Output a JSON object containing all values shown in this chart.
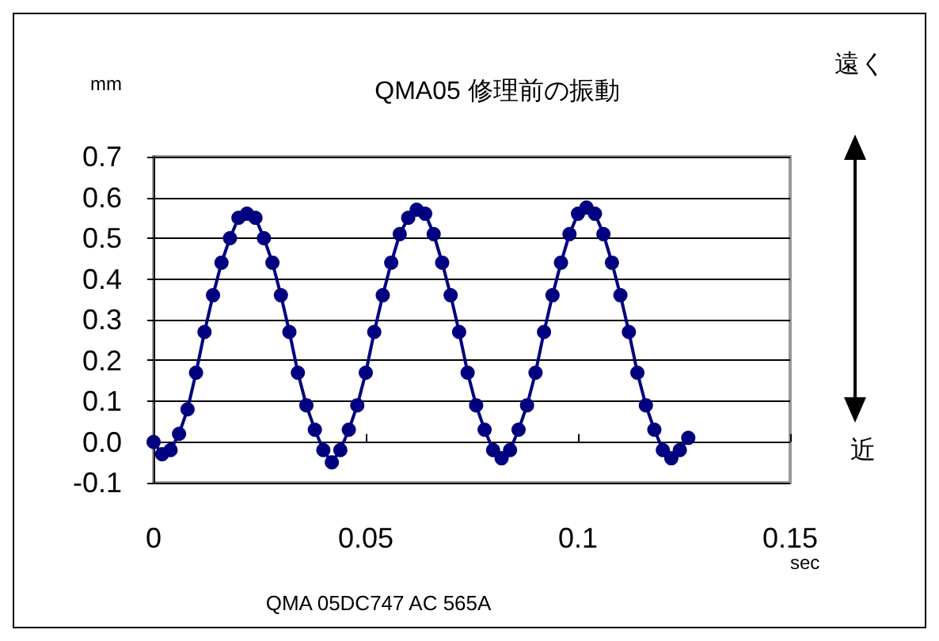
{
  "chart_data": {
    "type": "line",
    "title": "QMA05 修理前の振動",
    "xlabel": "sec",
    "ylabel": "mm",
    "annotations": [
      "遠く",
      "近",
      "QMA 05DC747 AC 565A"
    ],
    "x": [
      0,
      0.002,
      0.004,
      0.006,
      0.008,
      0.01,
      0.012,
      0.014,
      0.016,
      0.018,
      0.02,
      0.022,
      0.024,
      0.026,
      0.028,
      0.03,
      0.032,
      0.034,
      0.036,
      0.038,
      0.04,
      0.042,
      0.044,
      0.046,
      0.048,
      0.05,
      0.052,
      0.054,
      0.056,
      0.058,
      0.06,
      0.062,
      0.064,
      0.066,
      0.068,
      0.07,
      0.072,
      0.074,
      0.076,
      0.078,
      0.08,
      0.082,
      0.084,
      0.086,
      0.088,
      0.09,
      0.092,
      0.094,
      0.096,
      0.098,
      0.1,
      0.102,
      0.104,
      0.106,
      0.108,
      0.11,
      0.112,
      0.114,
      0.116,
      0.118,
      0.12,
      0.122,
      0.124,
      0.126
    ],
    "series": [
      {
        "color": "#000080",
        "values": [
          0.0,
          -0.03,
          -0.02,
          0.02,
          0.08,
          0.17,
          0.27,
          0.36,
          0.44,
          0.5,
          0.55,
          0.56,
          0.55,
          0.5,
          0.44,
          0.36,
          0.27,
          0.17,
          0.09,
          0.03,
          -0.02,
          -0.05,
          -0.02,
          0.03,
          0.09,
          0.17,
          0.27,
          0.36,
          0.44,
          0.51,
          0.55,
          0.57,
          0.56,
          0.51,
          0.44,
          0.36,
          0.27,
          0.17,
          0.09,
          0.03,
          -0.02,
          -0.04,
          -0.02,
          0.03,
          0.09,
          0.17,
          0.27,
          0.36,
          0.44,
          0.51,
          0.56,
          0.575,
          0.56,
          0.51,
          0.44,
          0.36,
          0.27,
          0.17,
          0.09,
          0.03,
          -0.02,
          -0.04,
          -0.02,
          0.01
        ]
      }
    ],
    "xlim": [
      0,
      0.15
    ],
    "xticks": [
      0,
      0.05,
      0.1,
      0.15
    ],
    "ylim": [
      -0.1,
      0.7
    ],
    "yticks": [
      {
        "value": -0.1,
        "label": "-0.1"
      },
      {
        "value": 0,
        "label": "0.0"
      },
      0.1,
      0.2,
      0.3,
      0.4,
      0.5,
      0.6,
      0.7
    ],
    "grid": "y",
    "marker": "circle",
    "line_style": "solid"
  }
}
